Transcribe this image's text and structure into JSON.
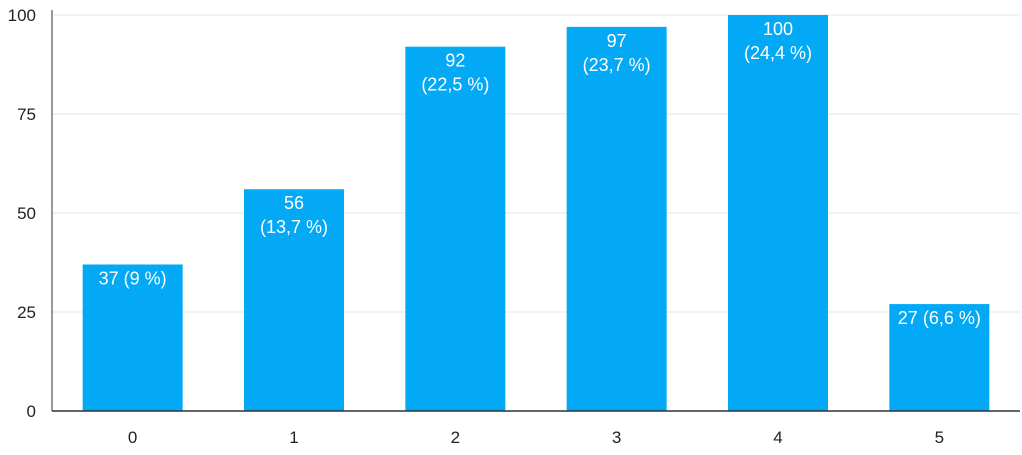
{
  "chart_data": {
    "type": "bar",
    "categories": [
      "0",
      "1",
      "2",
      "3",
      "4",
      "5"
    ],
    "values": [
      37,
      56,
      92,
      97,
      100,
      27
    ],
    "labels": [
      [
        "37 (9 %)"
      ],
      [
        "56",
        "(13,7 %)"
      ],
      [
        "92",
        "(22,5 %)"
      ],
      [
        "97",
        "(23,7 %)"
      ],
      [
        "100",
        "(24,4 %)"
      ],
      [
        "27 (6,6 %)"
      ]
    ],
    "y_ticks": [
      "0",
      "25",
      "50",
      "75",
      "100"
    ],
    "y_tick_values": [
      0,
      25,
      50,
      75,
      100
    ],
    "ylim": [
      0,
      100
    ],
    "grid": true,
    "colors": {
      "bar": "#03a9f4",
      "grid": "#e5e5e5",
      "axis": "#333333"
    }
  }
}
